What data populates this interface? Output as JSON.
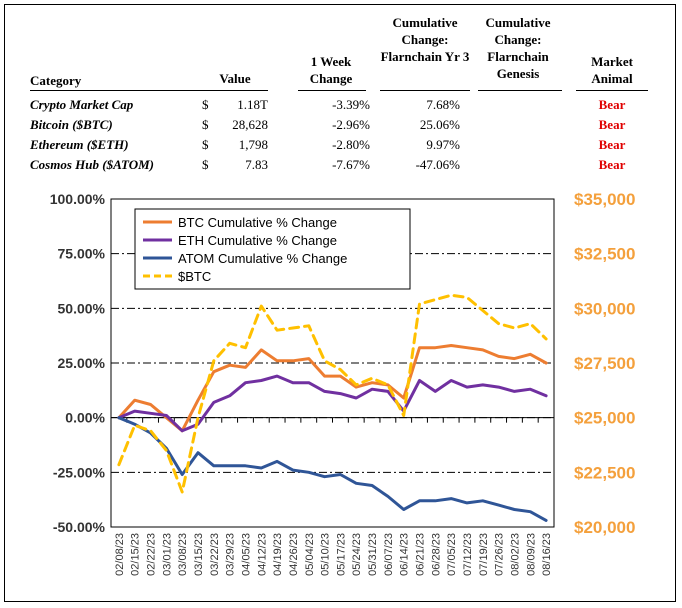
{
  "table": {
    "headers": {
      "category": "Category",
      "value": "Value",
      "week": "1 Week Change",
      "yr3": "Cumulative Change: Flarnchain Yr 3",
      "genesis": "Cumulative Change: Flarnchain Genesis",
      "animal": "Market Animal"
    },
    "rows": [
      {
        "category": "Crypto Market Cap",
        "currency": "$",
        "value": "1.18T",
        "week": "-3.39%",
        "yr3": "7.68%",
        "genesis": "",
        "animal": "Bear"
      },
      {
        "category": "Bitcoin ($BTC)",
        "currency": "$",
        "value": "28,628",
        "week": "-2.96%",
        "yr3": "25.06%",
        "genesis": "",
        "animal": "Bear"
      },
      {
        "category": "Ethereum ($ETH)",
        "currency": "$",
        "value": "1,798",
        "week": "-2.80%",
        "yr3": "9.97%",
        "genesis": "",
        "animal": "Bear"
      },
      {
        "category": "Cosmos Hub ($ATOM)",
        "currency": "$",
        "value": "7.83",
        "week": "-7.67%",
        "yr3": "-47.06%",
        "genesis": "",
        "animal": "Bear"
      }
    ]
  },
  "chart_data": {
    "type": "line",
    "title": "",
    "xlabel": "",
    "ylabel": "",
    "x": [
      "02/08/23",
      "02/15/23",
      "02/22/23",
      "03/01/23",
      "03/08/23",
      "03/15/23",
      "03/22/23",
      "03/29/23",
      "04/05/23",
      "04/12/23",
      "04/19/23",
      "04/26/23",
      "05/04/23",
      "05/10/23",
      "05/17/23",
      "05/24/23",
      "05/31/23",
      "06/07/23",
      "06/14/23",
      "06/21/23",
      "06/28/23",
      "07/05/23",
      "07/12/23",
      "07/19/23",
      "07/26/23",
      "08/02/23",
      "08/09/23",
      "08/16/23"
    ],
    "ylim": [
      -50,
      100
    ],
    "y_ticks": [
      "100.00%",
      "75.00%",
      "50.00%",
      "25.00%",
      "0.00%",
      "-25.00%",
      "-50.00%"
    ],
    "y2lim": [
      20000,
      35000
    ],
    "y2_ticks": [
      "$35,000",
      "$32,500",
      "$30,000",
      "$27,500",
      "$25,000",
      "$22,500",
      "$20,000"
    ],
    "grid": "horizontal dash-dot",
    "legend_position": "top-left",
    "series": [
      {
        "name": "BTC Cumulative % Change",
        "color": "#ed7d31",
        "axis": "left",
        "dash": false,
        "values": [
          0,
          8,
          6,
          0,
          -6,
          8,
          21,
          24,
          23,
          31,
          26,
          26,
          27,
          19,
          19,
          14,
          16,
          15,
          9,
          32,
          32,
          33,
          32,
          31,
          28,
          27,
          29,
          25
        ]
      },
      {
        "name": "ETH Cumulative % Change",
        "color": "#7030a0",
        "axis": "left",
        "dash": false,
        "values": [
          0,
          3,
          2,
          1,
          -6,
          -3,
          7,
          10,
          16,
          17,
          19,
          16,
          16,
          12,
          11,
          9,
          13,
          12,
          3,
          17,
          12,
          17,
          14,
          15,
          14,
          12,
          13,
          10
        ]
      },
      {
        "name": "ATOM Cumulative % Change",
        "color": "#2f5597",
        "axis": "left",
        "dash": false,
        "values": [
          0,
          -3,
          -7,
          -14,
          -26,
          -16,
          -22,
          -22,
          -22,
          -23,
          -20,
          -24,
          -25,
          -27,
          -26,
          -30,
          -31,
          -36,
          -42,
          -38,
          -38,
          -37,
          -39,
          -38,
          -40,
          -42,
          -43,
          -47
        ]
      },
      {
        "name": "$BTC",
        "color": "#ffc000",
        "axis": "right",
        "dash": true,
        "values": [
          22850,
          24650,
          24400,
          23500,
          21600,
          25000,
          27600,
          28400,
          28200,
          30100,
          29000,
          29100,
          29200,
          27600,
          27200,
          26500,
          26800,
          26500,
          25100,
          30200,
          30400,
          30600,
          30500,
          29900,
          29300,
          29100,
          29300,
          28600
        ]
      }
    ]
  }
}
